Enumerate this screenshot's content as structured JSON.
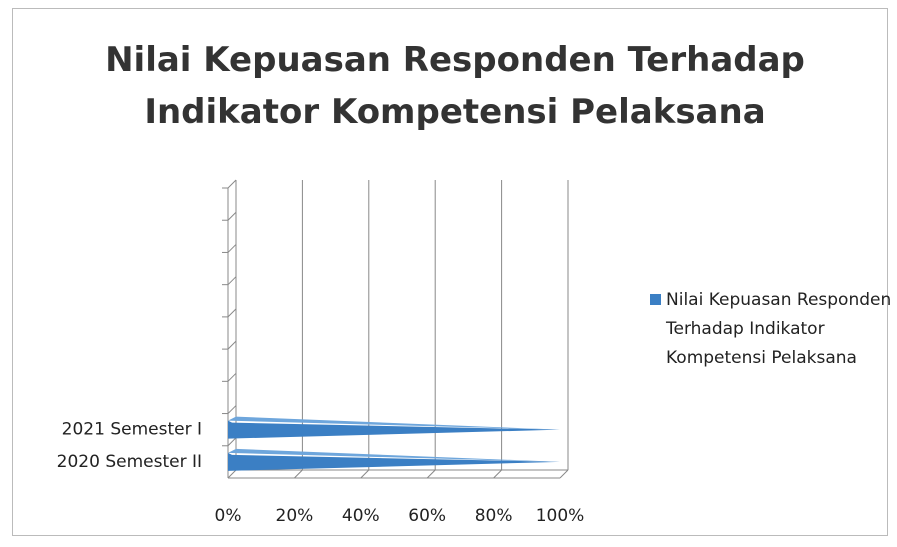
{
  "chart_data": {
    "type": "bar",
    "orientation": "horizontal",
    "title": "Nilai Kepuasan Responden Terhadap Indikator Kompetensi Pelaksana",
    "categories": [
      null,
      null,
      null,
      null,
      null,
      null,
      null,
      "2021 Semester I",
      "2020 Semester II"
    ],
    "series": [
      {
        "name": "Nilai Kepuasan Responden Terhadap Indikator Kompetensi Pelaksana",
        "color": "#3b7fc4",
        "values": [
          null,
          null,
          null,
          null,
          null,
          null,
          null,
          100,
          100
        ]
      }
    ],
    "xlim": [
      0,
      100
    ],
    "xticks": [
      {
        "value": 0,
        "label": "0%"
      },
      {
        "value": 20,
        "label": "20%"
      },
      {
        "value": 40,
        "label": "40%"
      },
      {
        "value": 60,
        "label": "60%"
      },
      {
        "value": 80,
        "label": "80%"
      },
      {
        "value": 100,
        "label": "100%"
      }
    ],
    "grid": true,
    "legend": "right"
  }
}
